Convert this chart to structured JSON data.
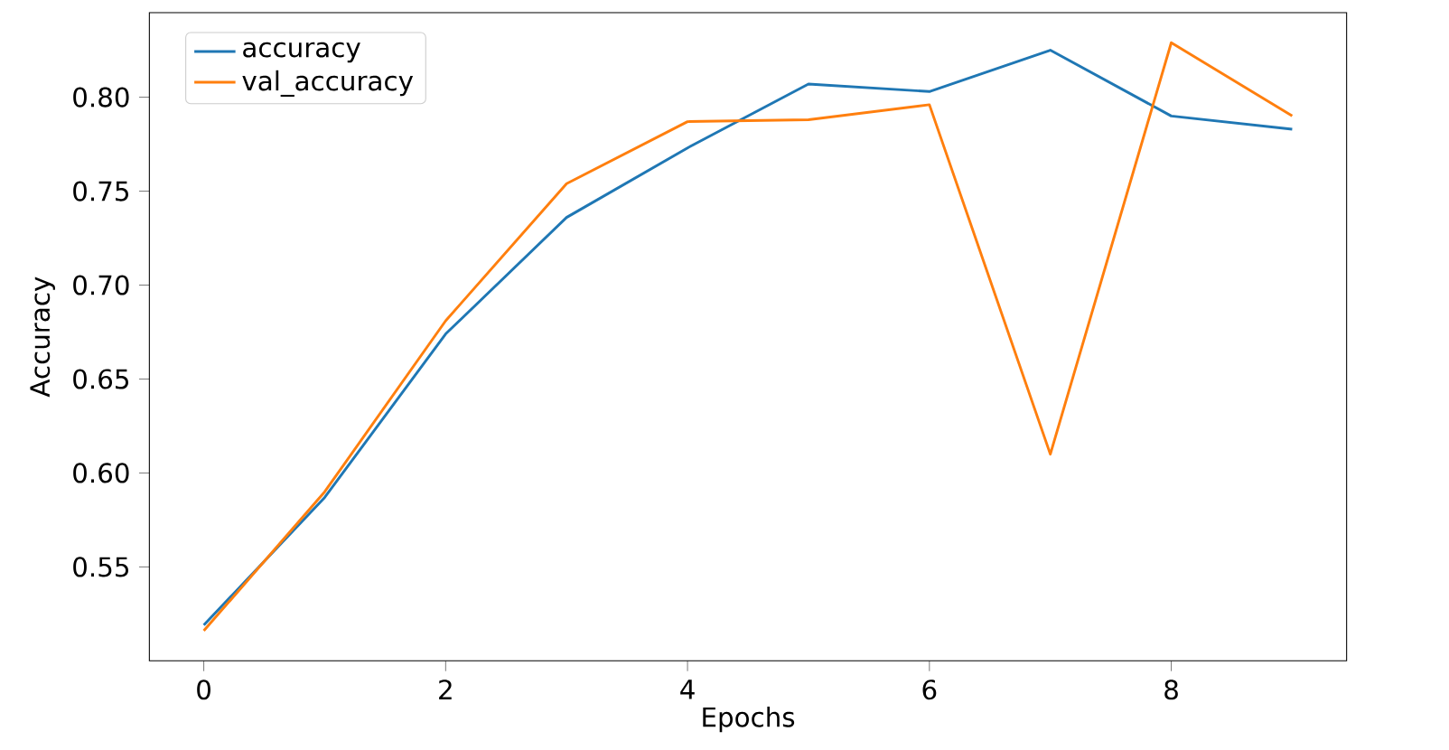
{
  "chart_data": {
    "type": "line",
    "xlabel": "Epochs",
    "ylabel": "Accuracy",
    "x": [
      0,
      1,
      2,
      3,
      4,
      5,
      6,
      7,
      8,
      9
    ],
    "series": [
      {
        "name": "accuracy",
        "color": "#1f77b4",
        "values": [
          0.519,
          0.587,
          0.674,
          0.736,
          0.773,
          0.807,
          0.803,
          0.825,
          0.79,
          0.783
        ]
      },
      {
        "name": "val_accuracy",
        "color": "#ff7f0e",
        "values": [
          0.516,
          0.59,
          0.681,
          0.754,
          0.787,
          0.788,
          0.796,
          0.61,
          0.829,
          0.79
        ]
      }
    ],
    "xlim": [
      -0.45,
      9.45
    ],
    "ylim": [
      0.5,
      0.845
    ],
    "xticks": [
      0,
      2,
      4,
      6,
      8
    ],
    "yticks": [
      0.55,
      {
        "value": 0.6,
        "label": "0.60"
      },
      0.65,
      {
        "value": 0.7,
        "label": "0.70"
      },
      0.75,
      {
        "value": 0.8,
        "label": "0.80"
      }
    ],
    "legend": "top left",
    "grid": false
  }
}
